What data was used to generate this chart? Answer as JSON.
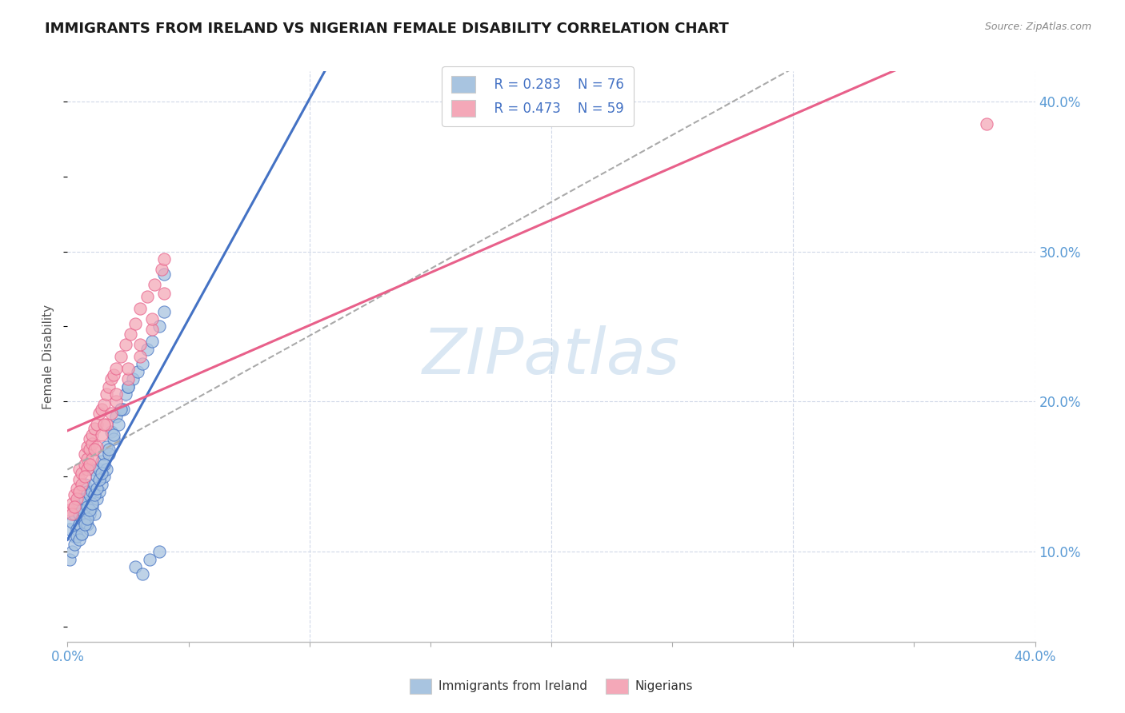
{
  "title": "IMMIGRANTS FROM IRELAND VS NIGERIAN FEMALE DISABILITY CORRELATION CHART",
  "source_text": "Source: ZipAtlas.com",
  "ylabel": "Female Disability",
  "watermark": "ZIPatlas",
  "xlim": [
    0.0,
    0.4
  ],
  "ylim": [
    0.04,
    0.42
  ],
  "xticks": [
    0.0,
    0.05,
    0.1,
    0.15,
    0.2,
    0.25,
    0.3,
    0.35,
    0.4
  ],
  "yticks": [
    0.1,
    0.2,
    0.3,
    0.4
  ],
  "ytick_labels": [
    "10.0%",
    "20.0%",
    "30.0%",
    "40.0%"
  ],
  "legend_r1": "R = 0.283",
  "legend_n1": "N = 76",
  "legend_r2": "R = 0.473",
  "legend_n2": "N = 59",
  "color_ireland": "#a8c4e0",
  "color_nigeria": "#f4a8b8",
  "color_ireland_line": "#4472c4",
  "color_nigeria_line": "#e8608a",
  "color_dashed": "#aaaaaa",
  "background_color": "#ffffff",
  "grid_color": "#d0d8e8",
  "ireland_x": [
    0.001,
    0.002,
    0.003,
    0.003,
    0.004,
    0.004,
    0.005,
    0.005,
    0.005,
    0.006,
    0.006,
    0.006,
    0.007,
    0.007,
    0.007,
    0.008,
    0.008,
    0.008,
    0.009,
    0.009,
    0.009,
    0.01,
    0.01,
    0.01,
    0.011,
    0.011,
    0.012,
    0.012,
    0.013,
    0.013,
    0.014,
    0.014,
    0.015,
    0.015,
    0.016,
    0.016,
    0.017,
    0.018,
    0.019,
    0.02,
    0.021,
    0.022,
    0.023,
    0.024,
    0.025,
    0.027,
    0.029,
    0.031,
    0.033,
    0.035,
    0.038,
    0.04,
    0.001,
    0.002,
    0.003,
    0.004,
    0.005,
    0.006,
    0.007,
    0.008,
    0.009,
    0.01,
    0.011,
    0.012,
    0.013,
    0.014,
    0.015,
    0.017,
    0.019,
    0.022,
    0.025,
    0.028,
    0.031,
    0.034,
    0.038,
    0.04
  ],
  "ireland_y": [
    0.115,
    0.12,
    0.125,
    0.11,
    0.13,
    0.115,
    0.125,
    0.135,
    0.118,
    0.122,
    0.128,
    0.112,
    0.135,
    0.12,
    0.145,
    0.118,
    0.13,
    0.14,
    0.125,
    0.138,
    0.115,
    0.14,
    0.13,
    0.155,
    0.125,
    0.145,
    0.135,
    0.15,
    0.14,
    0.155,
    0.145,
    0.16,
    0.15,
    0.165,
    0.155,
    0.17,
    0.165,
    0.18,
    0.175,
    0.19,
    0.185,
    0.195,
    0.195,
    0.205,
    0.21,
    0.215,
    0.22,
    0.225,
    0.235,
    0.24,
    0.25,
    0.26,
    0.095,
    0.1,
    0.105,
    0.11,
    0.108,
    0.112,
    0.118,
    0.122,
    0.128,
    0.132,
    0.138,
    0.142,
    0.148,
    0.152,
    0.158,
    0.168,
    0.178,
    0.195,
    0.21,
    0.09,
    0.085,
    0.095,
    0.1,
    0.285
  ],
  "nigeria_x": [
    0.001,
    0.002,
    0.003,
    0.004,
    0.005,
    0.005,
    0.006,
    0.007,
    0.007,
    0.008,
    0.008,
    0.009,
    0.009,
    0.01,
    0.01,
    0.011,
    0.012,
    0.013,
    0.014,
    0.015,
    0.016,
    0.017,
    0.018,
    0.019,
    0.02,
    0.022,
    0.024,
    0.026,
    0.028,
    0.03,
    0.033,
    0.036,
    0.039,
    0.002,
    0.004,
    0.006,
    0.008,
    0.01,
    0.012,
    0.014,
    0.016,
    0.018,
    0.02,
    0.025,
    0.03,
    0.035,
    0.04,
    0.003,
    0.005,
    0.007,
    0.009,
    0.011,
    0.015,
    0.02,
    0.025,
    0.03,
    0.035,
    0.04,
    0.38
  ],
  "nigeria_y": [
    0.128,
    0.132,
    0.138,
    0.142,
    0.148,
    0.155,
    0.152,
    0.158,
    0.165,
    0.162,
    0.17,
    0.168,
    0.175,
    0.172,
    0.178,
    0.182,
    0.185,
    0.192,
    0.195,
    0.198,
    0.205,
    0.21,
    0.215,
    0.218,
    0.222,
    0.23,
    0.238,
    0.245,
    0.252,
    0.262,
    0.27,
    0.278,
    0.288,
    0.125,
    0.135,
    0.145,
    0.155,
    0.162,
    0.17,
    0.178,
    0.185,
    0.192,
    0.2,
    0.215,
    0.23,
    0.248,
    0.295,
    0.13,
    0.14,
    0.15,
    0.158,
    0.168,
    0.185,
    0.205,
    0.222,
    0.238,
    0.255,
    0.272,
    0.385
  ]
}
